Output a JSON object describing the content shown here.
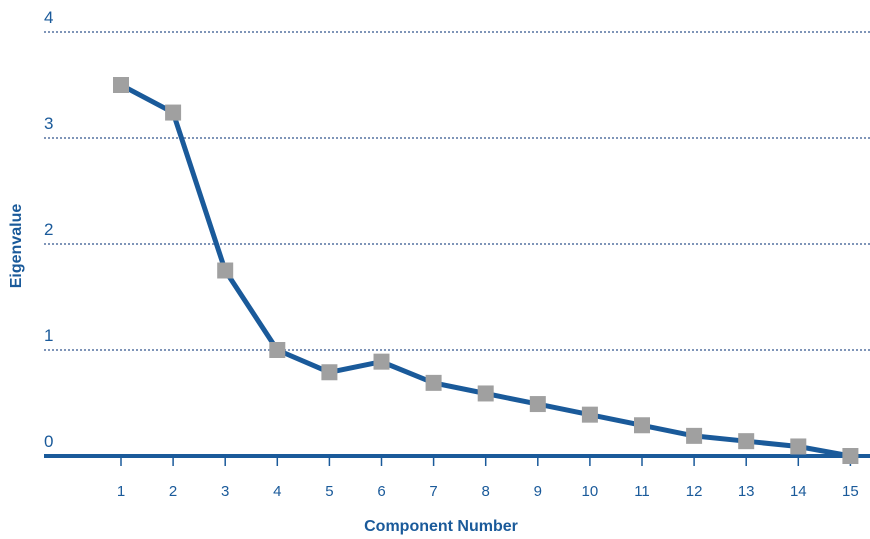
{
  "chart_data": {
    "type": "line",
    "xlabel": "Component Number",
    "ylabel": "Eigenvalue",
    "x": [
      1,
      2,
      3,
      4,
      5,
      6,
      7,
      8,
      9,
      10,
      11,
      12,
      13,
      14,
      15
    ],
    "series": [
      {
        "values": [
          3.5,
          3.24,
          1.75,
          1.0,
          0.79,
          0.89,
          0.69,
          0.59,
          0.49,
          0.39,
          0.29,
          0.19,
          0.14,
          0.09,
          0.0
        ]
      }
    ],
    "xlim": [
      1,
      15
    ],
    "ylim": [
      0,
      4
    ],
    "yticks": [
      "0",
      "1",
      "2",
      "3",
      "4"
    ],
    "xticks": [
      "1",
      "2",
      "3",
      "4",
      "5",
      "6",
      "7",
      "8",
      "9",
      "10",
      "11",
      "12",
      "13",
      "14",
      "15"
    ],
    "grid": "horizontal dotted",
    "colors": {
      "line": "#1a5a9a",
      "marker": "#a0a0a0",
      "grid": "#7f95b8",
      "text": "#1a5a9a"
    }
  }
}
